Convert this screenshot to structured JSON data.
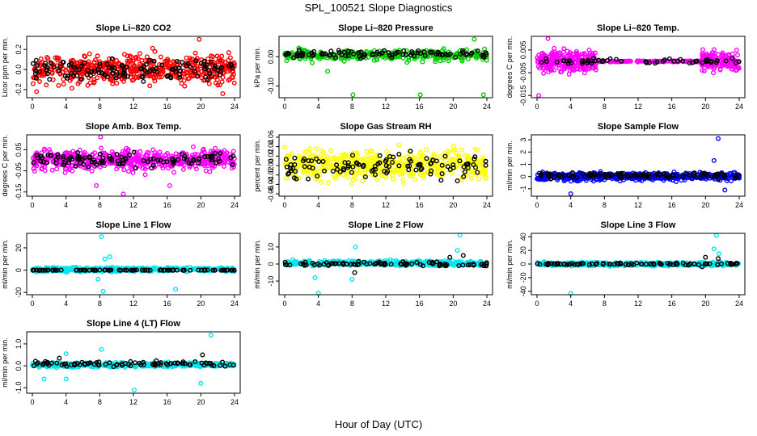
{
  "figure": {
    "title": "SPL_100521  Slope Diagnostics",
    "xlabel": "Hour of Day (UTC)"
  },
  "chart_data": [
    {
      "type": "scatter",
      "title": "Slope Li–820 CO2",
      "ylabel": "Licor ppm per min.",
      "xlim": [
        0,
        24
      ],
      "xticks": [
        "0",
        "4",
        "8",
        "12",
        "16",
        "20",
        "24"
      ],
      "ylim": [
        -0.28,
        0.33
      ],
      "yticks": [
        "-0.2",
        "0.0",
        "0.2"
      ],
      "ytick_values": [
        -0.2,
        0.0,
        0.2
      ],
      "series": [
        {
          "color": "#ff0000",
          "n": 520,
          "x": [
            0,
            24
          ],
          "spread": 0.14,
          "center": 0.0,
          "seed": 11,
          "points": [
            {
              "x": 19.8,
              "y": 0.3
            },
            {
              "x": 22.6,
              "y": -0.24
            },
            {
              "x": 0.5,
              "y": -0.22
            }
          ]
        },
        {
          "color": "#000000",
          "n": 130,
          "x": [
            0,
            24
          ],
          "spread": 0.1,
          "center": 0.0,
          "seed": 12
        }
      ]
    },
    {
      "type": "scatter",
      "title": "Slope Li–820 Pressure",
      "ylabel": "kPa per min.",
      "xlim": [
        0,
        24
      ],
      "xticks": [
        "0",
        "4",
        "8",
        "12",
        "16",
        "20",
        "24"
      ],
      "ylim": [
        -0.14,
        0.07
      ],
      "yticks": [
        "-0.10",
        "0.00"
      ],
      "ytick_values": [
        -0.1,
        0.0
      ],
      "series": [
        {
          "color": "#00cc00",
          "n": 300,
          "x": [
            0,
            24
          ],
          "spread": 0.018,
          "center": 0.005,
          "seed": 21,
          "points": [
            {
              "x": 22.5,
              "y": 0.06
            },
            {
              "x": 23.6,
              "y": -0.13
            },
            {
              "x": 8.1,
              "y": -0.13
            },
            {
              "x": 16.1,
              "y": -0.13
            },
            {
              "x": 5.1,
              "y": -0.05
            }
          ]
        },
        {
          "color": "#000000",
          "n": 100,
          "x": [
            0,
            24
          ],
          "spread": 0.012,
          "center": 0.01,
          "seed": 22
        }
      ]
    },
    {
      "type": "scatter",
      "title": "Slope Li–820 Temp.",
      "ylabel": "degrees C per min.",
      "xlim": [
        0,
        24
      ],
      "xticks": [
        "0",
        "4",
        "8",
        "12",
        "16",
        "20",
        "24"
      ],
      "ylim": [
        -0.016,
        0.011
      ],
      "yticks": [
        "-0.015",
        "-0.005",
        "0.005"
      ],
      "ytick_values": [
        -0.015,
        -0.005,
        0.005
      ],
      "series": [
        {
          "color": "#ff00ff",
          "n": 260,
          "x": [
            0,
            7
          ],
          "spread": 0.0045,
          "center": 0.0,
          "seed": 31,
          "points": [
            {
              "x": 1.3,
              "y": 0.01
            },
            {
              "x": 0.2,
              "y": -0.015
            }
          ]
        },
        {
          "color": "#ff00ff",
          "n": 160,
          "x": [
            19.5,
            24
          ],
          "spread": 0.004,
          "center": 0.0,
          "seed": 32
        },
        {
          "color": "#ff00ff",
          "n": 120,
          "x": [
            7,
            19.5
          ],
          "spread": 0.0003,
          "center": 0.0,
          "seed": 33
        },
        {
          "color": "#000000",
          "n": 60,
          "x": [
            0,
            24
          ],
          "spread": 0.0012,
          "center": 0.0,
          "seed": 34
        }
      ]
    },
    {
      "type": "scatter",
      "title": "Slope Amb. Box Temp.",
      "ylabel": "degrees C per min.",
      "xlim": [
        0,
        24
      ],
      "xticks": [
        "0",
        "4",
        "8",
        "12",
        "16",
        "20",
        "24"
      ],
      "ylim": [
        -0.17,
        0.12
      ],
      "yticks": [
        "-0.15",
        "-0.05",
        "0.05"
      ],
      "ytick_values": [
        -0.15,
        -0.05,
        0.05
      ],
      "series": [
        {
          "color": "#ff00ff",
          "n": 520,
          "x": [
            0,
            24
          ],
          "spread": 0.045,
          "center": 0.0,
          "seed": 41,
          "points": [
            {
              "x": 8.1,
              "y": 0.11
            },
            {
              "x": 7.6,
              "y": -0.12
            },
            {
              "x": 10.8,
              "y": -0.16
            },
            {
              "x": 16.3,
              "y": -0.12
            }
          ]
        },
        {
          "color": "#000000",
          "n": 110,
          "x": [
            0,
            24
          ],
          "spread": 0.03,
          "center": 0.0,
          "seed": 42
        }
      ]
    },
    {
      "type": "scatter",
      "title": "Slope Gas Stream RH",
      "ylabel": "percent per min.",
      "xlim": [
        0,
        24
      ],
      "xticks": [
        "0",
        "4",
        "8",
        "12",
        "16",
        "20",
        "24"
      ],
      "ylim": [
        -0.065,
        0.065
      ],
      "yticks": [
        "-0.06",
        "-0.04",
        "-0.02",
        "0.00",
        "0.02",
        "0.04",
        "0.06"
      ],
      "ytick_values": [
        -0.06,
        -0.04,
        -0.02,
        0.0,
        0.02,
        0.04,
        0.06
      ],
      "series": [
        {
          "color": "#ffff00",
          "n": 520,
          "x": [
            0,
            24
          ],
          "spread": 0.03,
          "center": 0.0,
          "seed": 51
        },
        {
          "color": "#000000",
          "n": 110,
          "x": [
            0,
            24
          ],
          "spread": 0.025,
          "center": 0.0,
          "seed": 52
        }
      ]
    },
    {
      "type": "scatter",
      "title": "Slope Sample Flow",
      "ylabel": "ml/min per min.",
      "xlim": [
        0,
        24
      ],
      "xticks": [
        "0",
        "4",
        "8",
        "12",
        "16",
        "20",
        "24"
      ],
      "ylim": [
        -1.6,
        3.4
      ],
      "yticks": [
        "-1",
        "0",
        "1",
        "2",
        "3"
      ],
      "ytick_values": [
        -1,
        0,
        1,
        2,
        3
      ],
      "series": [
        {
          "color": "#0000ff",
          "n": 520,
          "x": [
            0,
            24
          ],
          "spread": 0.3,
          "center": 0.0,
          "seed": 61,
          "points": [
            {
              "x": 21.5,
              "y": 3.1
            },
            {
              "x": 21.0,
              "y": 1.3
            },
            {
              "x": 4.0,
              "y": -1.4
            },
            {
              "x": 22.3,
              "y": -1.1
            }
          ]
        },
        {
          "color": "#000000",
          "n": 110,
          "x": [
            0,
            24
          ],
          "spread": 0.2,
          "center": 0.1,
          "seed": 62
        }
      ]
    },
    {
      "type": "scatter",
      "title": "Slope Line 1 Flow",
      "ylabel": "ml/min per min.",
      "xlim": [
        0,
        24
      ],
      "xticks": [
        "0",
        "4",
        "8",
        "12",
        "16",
        "20",
        "24"
      ],
      "ylim": [
        -22,
        33
      ],
      "yticks": [
        "-20",
        "0",
        "20"
      ],
      "ytick_values": [
        -20,
        0,
        20
      ],
      "series": [
        {
          "color": "#00e5ee",
          "n": 420,
          "x": [
            0,
            24
          ],
          "spread": 1.8,
          "center": 0.5,
          "seed": 71,
          "points": [
            {
              "x": 8.2,
              "y": 30
            },
            {
              "x": 8.4,
              "y": -19
            },
            {
              "x": 17.0,
              "y": -17
            },
            {
              "x": 8.6,
              "y": 10
            },
            {
              "x": 9.2,
              "y": 12
            },
            {
              "x": 7.8,
              "y": -8
            }
          ]
        },
        {
          "color": "#000000",
          "n": 90,
          "x": [
            0,
            24
          ],
          "spread": 0.2,
          "center": 0.0,
          "seed": 72
        }
      ]
    },
    {
      "type": "scatter",
      "title": "Slope Line 2 Flow",
      "ylabel": "ml/min per min.",
      "xlim": [
        0,
        24
      ],
      "xticks": [
        "0",
        "4",
        "8",
        "12",
        "16",
        "20",
        "24"
      ],
      "ylim": [
        -18,
        18
      ],
      "yticks": [
        "-10",
        "0",
        "10"
      ],
      "ytick_values": [
        -10,
        0,
        10
      ],
      "series": [
        {
          "color": "#00e5ee",
          "n": 420,
          "x": [
            0,
            24
          ],
          "spread": 1.5,
          "center": 0.5,
          "seed": 81,
          "points": [
            {
              "x": 20.8,
              "y": 17
            },
            {
              "x": 4.0,
              "y": -17
            },
            {
              "x": 8.4,
              "y": 10
            },
            {
              "x": 20.5,
              "y": 8
            },
            {
              "x": 3.6,
              "y": -8
            },
            {
              "x": 8.0,
              "y": -9
            }
          ]
        },
        {
          "color": "#000000",
          "n": 90,
          "x": [
            0,
            24
          ],
          "spread": 1.0,
          "center": 0.0,
          "seed": 82,
          "points": [
            {
              "x": 19.6,
              "y": 4
            },
            {
              "x": 21.2,
              "y": 5
            },
            {
              "x": 8.3,
              "y": -5
            }
          ]
        }
      ]
    },
    {
      "type": "scatter",
      "title": "Slope Line 3 Flow",
      "ylabel": "ml/min per min.",
      "xlim": [
        0,
        24
      ],
      "xticks": [
        "0",
        "4",
        "8",
        "12",
        "16",
        "20",
        "24"
      ],
      "ylim": [
        -45,
        45
      ],
      "yticks": [
        "-40",
        "-20",
        "0",
        "20",
        "40"
      ],
      "ytick_values": [
        -40,
        -20,
        0,
        20,
        40
      ],
      "series": [
        {
          "color": "#00e5ee",
          "n": 420,
          "x": [
            0,
            24
          ],
          "spread": 2.5,
          "center": 0.0,
          "seed": 91,
          "points": [
            {
              "x": 21.3,
              "y": 42
            },
            {
              "x": 4.0,
              "y": -43
            },
            {
              "x": 21.0,
              "y": 22
            },
            {
              "x": 21.6,
              "y": 15
            }
          ]
        },
        {
          "color": "#000000",
          "n": 90,
          "x": [
            0,
            24
          ],
          "spread": 1.5,
          "center": 0.0,
          "seed": 92,
          "points": [
            {
              "x": 20.0,
              "y": 10
            },
            {
              "x": 21.5,
              "y": 8
            },
            {
              "x": 19.6,
              "y": -4
            }
          ]
        }
      ]
    },
    {
      "type": "scatter",
      "title": "Slope Line 4 (LT) Flow",
      "ylabel": "ml/min per min.",
      "xlim": [
        0,
        24
      ],
      "xticks": [
        "0",
        "4",
        "8",
        "12",
        "16",
        "20",
        "24"
      ],
      "ylim": [
        -1.25,
        1.55
      ],
      "yticks": [
        "-1.0",
        "0.0",
        "1.0"
      ],
      "ytick_values": [
        -1.0,
        0.0,
        1.0
      ],
      "series": [
        {
          "color": "#00e5ee",
          "n": 420,
          "x": [
            0,
            24
          ],
          "spread": 0.1,
          "center": 0.05,
          "seed": 101,
          "points": [
            {
              "x": 21.2,
              "y": 1.4
            },
            {
              "x": 12.1,
              "y": -1.1
            },
            {
              "x": 1.4,
              "y": -0.6
            },
            {
              "x": 4.0,
              "y": -0.6
            },
            {
              "x": 8.2,
              "y": 0.75
            },
            {
              "x": 20.0,
              "y": -0.8
            },
            {
              "x": 4.0,
              "y": 0.55
            }
          ]
        },
        {
          "color": "#000000",
          "n": 90,
          "x": [
            0,
            24
          ],
          "spread": 0.1,
          "center": 0.1,
          "seed": 102,
          "points": [
            {
              "x": 20.2,
              "y": 0.5
            },
            {
              "x": 3.2,
              "y": 0.35
            }
          ]
        }
      ]
    }
  ]
}
